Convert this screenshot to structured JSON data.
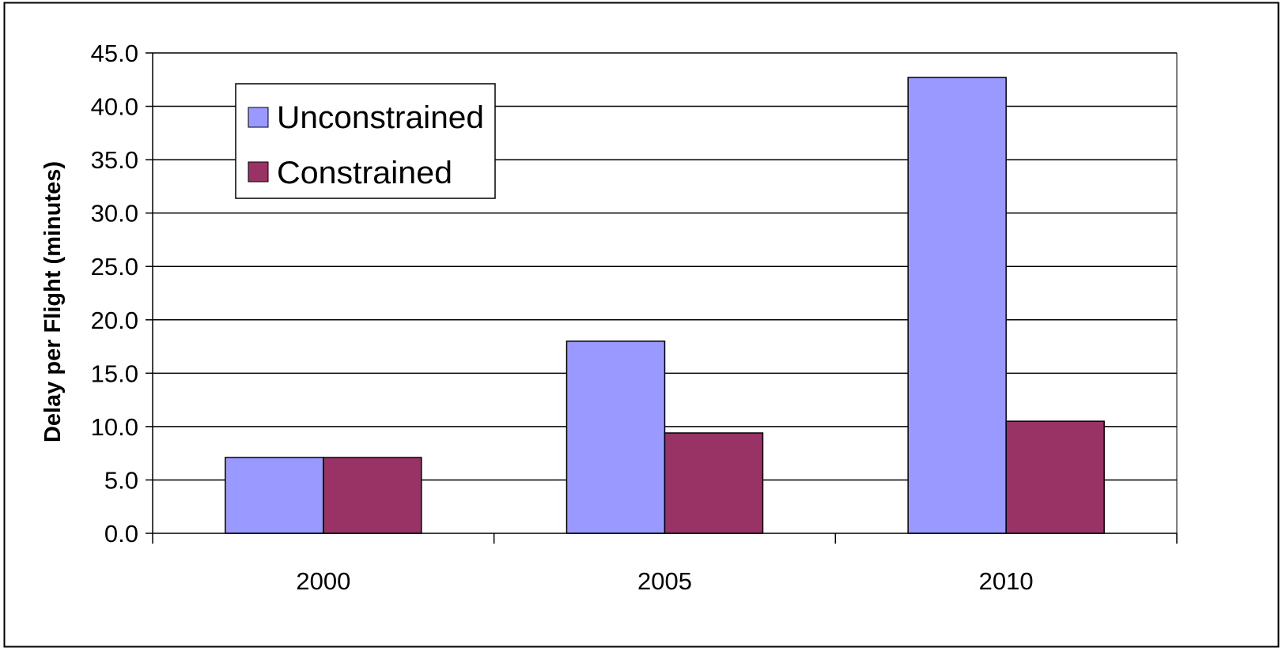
{
  "chart_data": {
    "type": "bar",
    "categories": [
      "2000",
      "2005",
      "2010"
    ],
    "series": [
      {
        "name": "Unconstrained",
        "values": [
          7.1,
          18.0,
          42.7
        ],
        "color": "#9999ff"
      },
      {
        "name": "Constrained",
        "values": [
          7.1,
          9.4,
          10.5
        ],
        "color": "#993366"
      }
    ],
    "title": "",
    "xlabel": "",
    "ylabel": "Delay per Flight (minutes)",
    "ylim": [
      0,
      45
    ],
    "yticks": [
      "0.0",
      "5.0",
      "10.0",
      "15.0",
      "20.0",
      "25.0",
      "30.0",
      "35.0",
      "40.0",
      "45.0"
    ],
    "grid": true,
    "legend_position": "top-left"
  }
}
